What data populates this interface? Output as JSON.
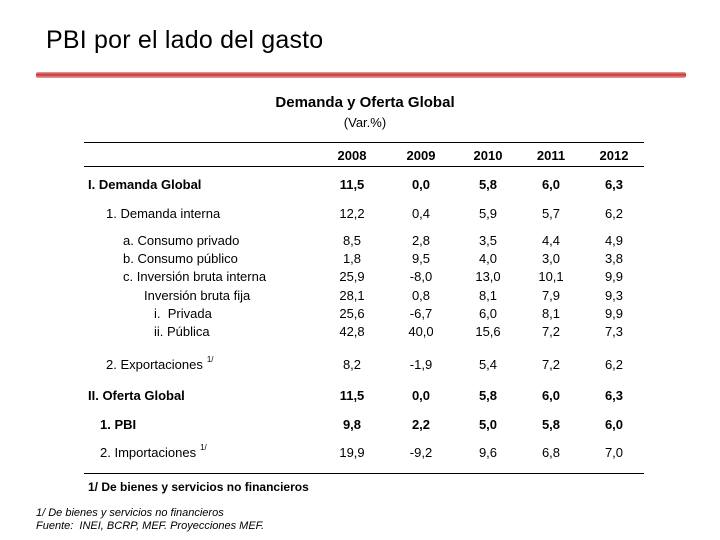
{
  "slide": {
    "title": "PBI por el lado del gasto"
  },
  "table": {
    "title": "Demanda y Oferta Global",
    "subtitle": "(Var.%)",
    "years": [
      "2008",
      "2009",
      "2010",
      "2011",
      "2012"
    ],
    "rows": [
      {
        "label": "I. Demanda Global",
        "values": [
          "11,5",
          "0,0",
          "5,8",
          "6,0",
          "6,3"
        ]
      },
      {
        "label": "1. Demanda interna",
        "values": [
          "12,2",
          "0,4",
          "5,9",
          "5,7",
          "6,2"
        ]
      },
      {
        "label": "a. Consumo privado",
        "values": [
          "8,5",
          "2,8",
          "3,5",
          "4,4",
          "4,9"
        ]
      },
      {
        "label": "b. Consumo público",
        "values": [
          "1,8",
          "9,5",
          "4,0",
          "3,0",
          "3,8"
        ]
      },
      {
        "label": "c. Inversión bruta interna",
        "values": [
          "25,9",
          "-8,0",
          "13,0",
          "10,1",
          "9,9"
        ]
      },
      {
        "label": "Inversión bruta fija",
        "values": [
          "28,1",
          "0,8",
          "8,1",
          "7,9",
          "9,3"
        ]
      },
      {
        "label": "i.  Privada",
        "values": [
          "25,6",
          "-6,7",
          "6,0",
          "8,1",
          "9,9"
        ]
      },
      {
        "label": "ii. Pública",
        "values": [
          "42,8",
          "40,0",
          "15,6",
          "7,2",
          "7,3"
        ]
      },
      {
        "label": "2. Exportaciones",
        "sup": "1/",
        "values": [
          "8,2",
          "-1,9",
          "5,4",
          "7,2",
          "6,2"
        ]
      },
      {
        "label": "II. Oferta Global",
        "values": [
          "11,5",
          "0,0",
          "5,8",
          "6,0",
          "6,3"
        ]
      },
      {
        "label": "1. PBI",
        "values": [
          "9,8",
          "2,2",
          "5,0",
          "5,8",
          "6,0"
        ]
      },
      {
        "label": "2. Importaciones",
        "sup": "1/",
        "values": [
          "19,9",
          "-9,2",
          "9,6",
          "6,8",
          "7,0"
        ]
      }
    ],
    "table_footnote": "1/ De bienes y servicios no financieros"
  },
  "footnotes": {
    "line1": "1/ De bienes y servicios no financieros",
    "line2": "Fuente:  INEI, BCRP, MEF. Proyecciones MEF."
  }
}
